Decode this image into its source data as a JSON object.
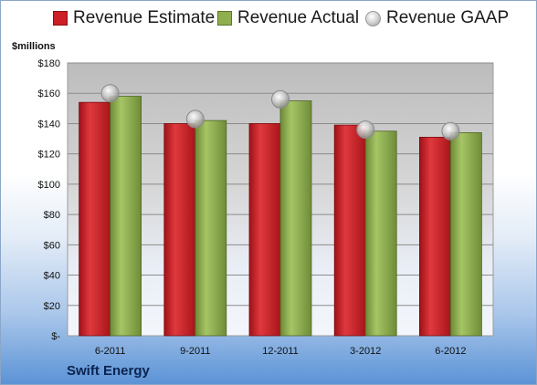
{
  "legend": {
    "estimate": "Revenue Estimate",
    "actual": "Revenue Actual",
    "gaap": "Revenue GAAP"
  },
  "units_label": "$millions",
  "company": "Swift Energy",
  "colors": {
    "estimate": "#cc1f26",
    "actual": "#8fae4e",
    "gaap": "#bdbdbd",
    "plot_top": "#bdbdbd",
    "plot_bottom": "#eef3fb"
  },
  "chart_data": {
    "type": "bar",
    "categories": [
      "6-2011",
      "9-2011",
      "12-2011",
      "3-2012",
      "6-2012"
    ],
    "series": [
      {
        "name": "Revenue Estimate",
        "values": [
          154,
          140,
          140,
          139,
          131
        ]
      },
      {
        "name": "Revenue Actual",
        "values": [
          158,
          142,
          155,
          135,
          134
        ]
      },
      {
        "name": "Revenue GAAP",
        "values": [
          160,
          143,
          156,
          136,
          135
        ]
      }
    ],
    "ylabel": "$millions",
    "ylim": [
      0,
      180
    ],
    "y_ticks": [
      0,
      20,
      40,
      60,
      80,
      100,
      120,
      140,
      160,
      180
    ],
    "y_tick_labels": [
      "$-",
      "$20",
      "$40",
      "$60",
      "$80",
      "$100",
      "$120",
      "$140",
      "$160",
      "$180"
    ],
    "grid": true,
    "legend_position": "top"
  }
}
